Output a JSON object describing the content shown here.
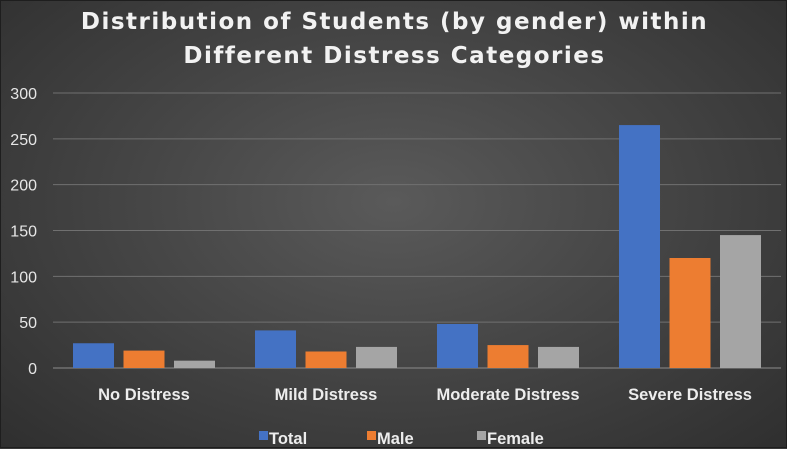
{
  "chart_data": {
    "type": "bar",
    "title_lines": [
      "Distribution of Students (by gender) within",
      "Different Distress Categories"
    ],
    "categories": [
      "No Distress",
      "Mild Distress",
      "Moderate Distress",
      "Severe Distress"
    ],
    "series": [
      {
        "name": "Total",
        "color": "#4472c4",
        "values": [
          27,
          41,
          48,
          265
        ]
      },
      {
        "name": "Male",
        "color": "#ed7d31",
        "values": [
          19,
          18,
          25,
          120
        ]
      },
      {
        "name": "Female",
        "color": "#a5a5a5",
        "values": [
          8,
          23,
          23,
          145
        ]
      }
    ],
    "yticks": [
      "0",
      "50",
      "100",
      "150",
      "200",
      "250",
      "300"
    ],
    "ylim": [
      0,
      300
    ],
    "grid": true,
    "legend_position": "bottom"
  }
}
